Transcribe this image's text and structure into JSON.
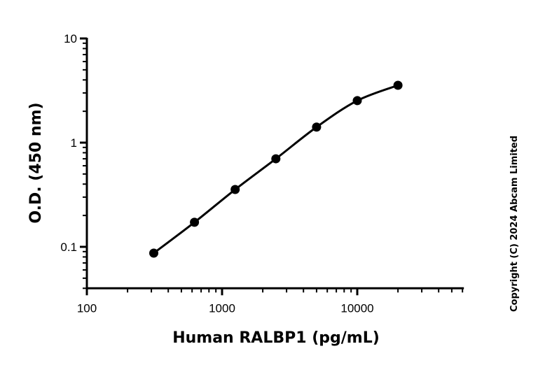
{
  "chart_data": {
    "type": "scatter",
    "title": "",
    "xlabel": "Human RALBP1 (pg/mL)",
    "ylabel": "O.D. (450 nm)",
    "xscale": "log",
    "yscale": "log",
    "xlim": [
      100,
      60000
    ],
    "ylim": [
      0.04,
      10
    ],
    "x_ticks": [
      100,
      1000,
      10000
    ],
    "x_tick_labels": [
      "100",
      "1000",
      "10000"
    ],
    "y_ticks": [
      0.1,
      1,
      10
    ],
    "y_tick_labels": [
      "0.1",
      "1",
      "10"
    ],
    "grid": false,
    "fit_curve": true,
    "color": "#000000",
    "series": [
      {
        "x": [
          312.5,
          625,
          1250,
          2500,
          5000,
          10000,
          20000
        ],
        "y": [
          0.087,
          0.172,
          0.355,
          0.7,
          1.41,
          2.53,
          3.55
        ]
      }
    ]
  },
  "copyright": "Copyright (C) 2024 Abcam Limited"
}
